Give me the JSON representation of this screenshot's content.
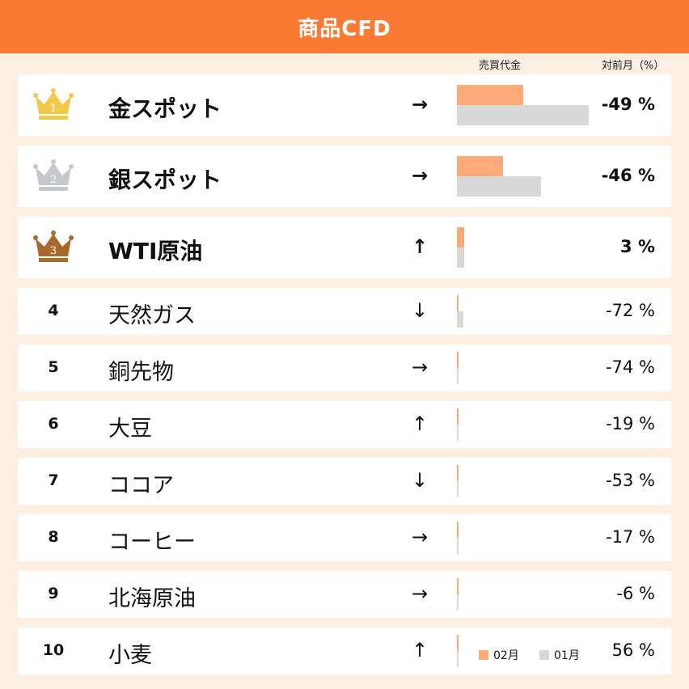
{
  "header": {
    "title": "商品CFD"
  },
  "columns": {
    "volume_label": "売買代金",
    "change_label": "対前月（%）"
  },
  "legend": {
    "current_label": "02月",
    "previous_label": "01月",
    "current_color": "#fdaa78",
    "previous_color": "#d8d8d8"
  },
  "accent_color": "#fb7a34",
  "crown_colors": [
    "#f2c94c",
    "#c6c9cc",
    "#a86a2c"
  ],
  "rankings": [
    {
      "rank": "1",
      "name": "金スポット",
      "arrow": "→",
      "trend": "flat",
      "change": "-49 %",
      "volume_current": 0.42,
      "volume_previous": 0.83
    },
    {
      "rank": "2",
      "name": "銀スポット",
      "arrow": "→",
      "trend": "flat",
      "change": "-46 %",
      "volume_current": 0.29,
      "volume_previous": 0.53
    },
    {
      "rank": "3",
      "name": "WTI原油",
      "arrow": "↑",
      "trend": "up",
      "change": "3 %",
      "volume_current": 0.045,
      "volume_previous": 0.044
    },
    {
      "rank": "4",
      "name": "天然ガス",
      "arrow": "↓",
      "trend": "down",
      "change": "-72 %",
      "volume_current": 0.012,
      "volume_previous": 0.042
    },
    {
      "rank": "5",
      "name": "銅先物",
      "arrow": "→",
      "trend": "flat",
      "change": "-74 %",
      "volume_current": 0.003,
      "volume_previous": 0.01
    },
    {
      "rank": "6",
      "name": "大豆",
      "arrow": "↑",
      "trend": "up",
      "change": "-19 %",
      "volume_current": 0.008,
      "volume_previous": 0.01
    },
    {
      "rank": "7",
      "name": "ココア",
      "arrow": "↓",
      "trend": "down",
      "change": "-53 %",
      "volume_current": 0.005,
      "volume_previous": 0.01
    },
    {
      "rank": "8",
      "name": "コーヒー",
      "arrow": "→",
      "trend": "flat",
      "change": "-17 %",
      "volume_current": 0.008,
      "volume_previous": 0.01
    },
    {
      "rank": "9",
      "name": "北海原油",
      "arrow": "→",
      "trend": "flat",
      "change": "-6 %",
      "volume_current": 0.009,
      "volume_previous": 0.01
    },
    {
      "rank": "10",
      "name": "小麦",
      "arrow": "↑",
      "trend": "up",
      "change": "56 %",
      "volume_current": 0.012,
      "volume_previous": 0.008
    }
  ]
}
